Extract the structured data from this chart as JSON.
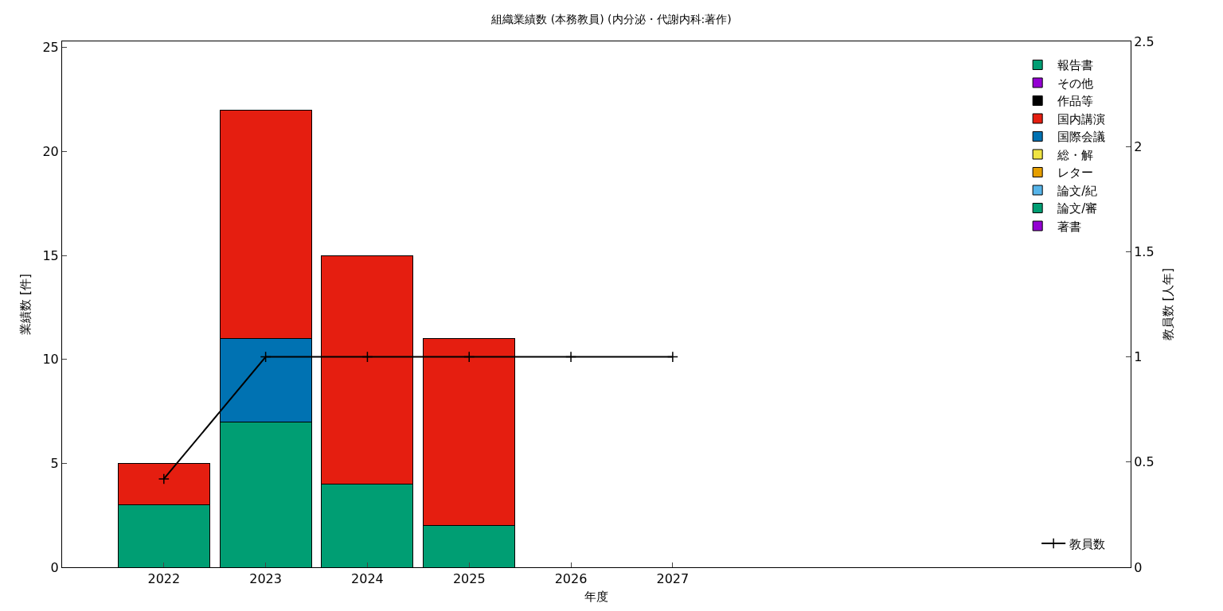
{
  "chart_data": {
    "type": "bar",
    "title": "組織業績数 (本務教員) (内分泌・代謝内科:著作)",
    "xlabel": "年度",
    "ylabel": "業績数 [件]",
    "y2label": "教員数 [人年]",
    "x": [
      2022,
      2023,
      2024,
      2025
    ],
    "xlim": [
      2021,
      2031.5
    ],
    "xticks": [
      2022,
      2023,
      2024,
      2025,
      2026,
      2027
    ],
    "ylim": [
      0,
      25.3
    ],
    "yticks": [
      0,
      5,
      10,
      15,
      20,
      25
    ],
    "y2lim": [
      0,
      2.5
    ],
    "y2ticks": [
      0,
      0.5,
      1,
      1.5,
      2,
      2.5
    ],
    "stacked": true,
    "grid": false,
    "legend": "right",
    "series": [
      {
        "name": "著書",
        "color": "#9400d3",
        "values": [
          0,
          0,
          0,
          0
        ]
      },
      {
        "name": "論文/審",
        "color": "#009e73",
        "values": [
          3,
          7,
          4,
          2
        ]
      },
      {
        "name": "論文/紀",
        "color": "#56b4e9",
        "values": [
          0,
          0,
          0,
          0
        ]
      },
      {
        "name": "レター",
        "color": "#e69f00",
        "values": [
          0,
          0,
          0,
          0
        ]
      },
      {
        "name": "総・解",
        "color": "#f0e442",
        "values": [
          0,
          0,
          0,
          0
        ]
      },
      {
        "name": "国際会議",
        "color": "#0072b2",
        "values": [
          0,
          4,
          0,
          0
        ]
      },
      {
        "name": "国内講演",
        "color": "#e51e10",
        "values": [
          2,
          11,
          11,
          9
        ]
      },
      {
        "name": "作品等",
        "color": "#000000",
        "values": [
          0,
          0,
          0,
          0
        ]
      },
      {
        "name": "その他",
        "color": "#9400d3",
        "values": [
          0,
          0,
          0,
          0
        ]
      },
      {
        "name": "報告書",
        "color": "#009e73",
        "values": [
          0,
          0,
          0,
          0
        ]
      },
      {
        "name": "教員数",
        "type": "line",
        "axis": "y2",
        "color": "#000000",
        "marker": "cross",
        "line_style": "solid",
        "x": [
          2022,
          2023,
          2024,
          2025,
          2026,
          2027
        ],
        "values": [
          0.42,
          1,
          1,
          1,
          1,
          1
        ]
      }
    ]
  }
}
